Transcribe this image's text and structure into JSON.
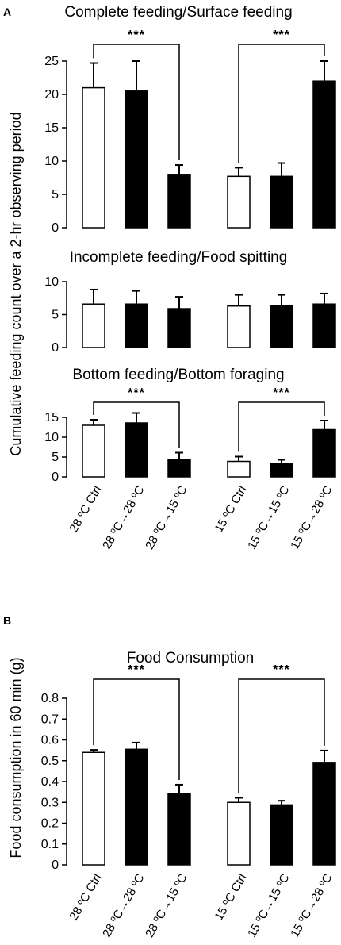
{
  "chart_data": [
    {
      "panel": "A",
      "type": "bar",
      "ylabel": "Cumulative feeding count over a 2-hr observing period",
      "categories": [
        "28 ºC Ctrl",
        "28 ºC→28 ºC",
        "28 ºC→15 ºC",
        "15 ºC Ctrl",
        "15 ºC→15 ºC",
        "15 ºC→28 ºC"
      ],
      "bar_colors": [
        "#ffffff",
        "#000000",
        "#000000",
        "#ffffff",
        "#000000",
        "#000000"
      ],
      "subplots": [
        {
          "title": "Complete feeding/Surface feeding",
          "ylim": [
            0,
            25
          ],
          "yticks": [
            0,
            5,
            10,
            15,
            20,
            25
          ],
          "values": [
            21.0,
            20.5,
            8.0,
            7.7,
            7.7,
            22.0
          ],
          "errors": [
            3.7,
            4.5,
            1.4,
            1.3,
            2.0,
            3.0
          ],
          "significance": [
            {
              "from": 0,
              "to": 2,
              "label": "***"
            },
            {
              "from": 3,
              "to": 5,
              "label": "***"
            }
          ]
        },
        {
          "title": "Incomplete feeding/Food spitting",
          "ylim": [
            0,
            10
          ],
          "yticks": [
            0,
            5,
            10
          ],
          "values": [
            6.6,
            6.6,
            5.9,
            6.3,
            6.4,
            6.6
          ],
          "errors": [
            2.2,
            2.0,
            1.8,
            1.7,
            1.6,
            1.6
          ],
          "significance": []
        },
        {
          "title": "Bottom feeding/Bottom foraging",
          "ylim": [
            0,
            15
          ],
          "yticks": [
            0,
            5,
            10,
            15
          ],
          "values": [
            13.0,
            13.6,
            4.3,
            3.9,
            3.4,
            11.9
          ],
          "errors": [
            1.4,
            2.5,
            1.8,
            1.2,
            0.9,
            2.3
          ],
          "significance": [
            {
              "from": 0,
              "to": 2,
              "label": "***"
            },
            {
              "from": 3,
              "to": 5,
              "label": "***"
            }
          ]
        }
      ]
    },
    {
      "panel": "B",
      "type": "bar",
      "title": "Food Consumption",
      "ylabel": "Food consumption in 60 min (g)",
      "ylim": [
        0,
        0.8
      ],
      "yticks": [
        "0",
        "0.1",
        "0.2",
        "0.3",
        "0.4",
        "0.5",
        "0.6",
        "0.7",
        "0.8"
      ],
      "categories": [
        "28 ºC Ctrl",
        "28 ºC→28 ºC",
        "28 ºC→15 ºC",
        "15 ºC Ctrl",
        "15 ºC→15 ºC",
        "15 ºC→28 ºC"
      ],
      "bar_colors": [
        "#ffffff",
        "#000000",
        "#000000",
        "#ffffff",
        "#000000",
        "#000000"
      ],
      "values": [
        0.54,
        0.555,
        0.34,
        0.3,
        0.288,
        0.492
      ],
      "errors": [
        0.012,
        0.032,
        0.045,
        0.022,
        0.02,
        0.057
      ],
      "significance": [
        {
          "from": 0,
          "to": 2,
          "label": "***"
        },
        {
          "from": 3,
          "to": 5,
          "label": "***"
        }
      ]
    }
  ]
}
